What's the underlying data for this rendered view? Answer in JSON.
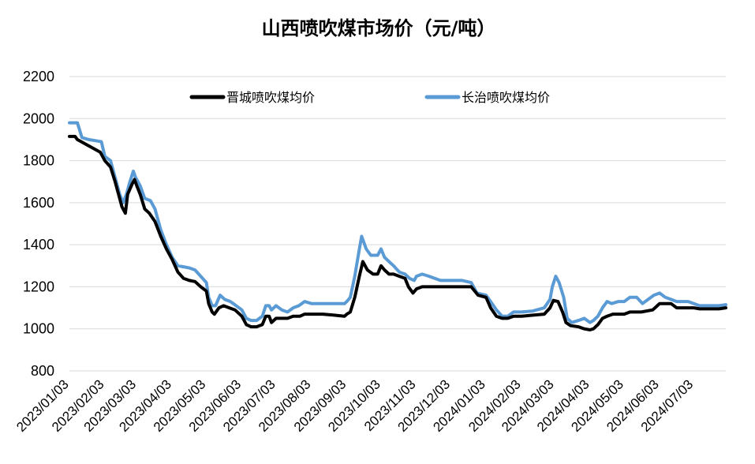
{
  "chart_data": {
    "type": "line",
    "title": "山西喷吹煤市场价（元/吨）",
    "xlabel": "",
    "ylabel": "",
    "ylim": [
      800,
      2200
    ],
    "yticks": [
      800,
      1000,
      1200,
      1400,
      1600,
      1800,
      2000,
      2200
    ],
    "xlim": [
      "2023-01-03",
      "2024-07-31"
    ],
    "xtick_labels": [
      "2023/01/03",
      "2023/02/03",
      "2023/03/03",
      "2023/04/03",
      "2023/05/03",
      "2023/06/03",
      "2023/07/03",
      "2023/08/03",
      "2023/09/03",
      "2023/10/03",
      "2023/11/03",
      "2023/12/03",
      "2024/01/03",
      "2024/02/03",
      "2024/03/03",
      "2024/04/03",
      "2024/05/03",
      "2024/06/03",
      "2024/07/03"
    ],
    "xtick_dates": [
      "2023-01-03",
      "2023-02-03",
      "2023-03-03",
      "2023-04-03",
      "2023-05-03",
      "2023-06-03",
      "2023-07-03",
      "2023-08-03",
      "2023-09-03",
      "2023-10-03",
      "2023-11-03",
      "2023-12-03",
      "2024-01-03",
      "2024-02-03",
      "2024-03-03",
      "2024-04-03",
      "2024-05-03",
      "2024-06-03",
      "2024-07-03"
    ],
    "grid": "horizontal",
    "legend_position": "top",
    "series": [
      {
        "name": "晋城喷吹煤均价",
        "color": "#000000",
        "points": [
          [
            "2023-01-03",
            1915
          ],
          [
            "2023-01-08",
            1915
          ],
          [
            "2023-01-10",
            1900
          ],
          [
            "2023-01-20",
            1870
          ],
          [
            "2023-01-30",
            1840
          ],
          [
            "2023-02-03",
            1800
          ],
          [
            "2023-02-08",
            1770
          ],
          [
            "2023-02-12",
            1700
          ],
          [
            "2023-02-16",
            1620
          ],
          [
            "2023-02-18",
            1580
          ],
          [
            "2023-02-21",
            1550
          ],
          [
            "2023-02-23",
            1640
          ],
          [
            "2023-02-27",
            1690
          ],
          [
            "2023-03-01",
            1710
          ],
          [
            "2023-03-03",
            1680
          ],
          [
            "2023-03-06",
            1640
          ],
          [
            "2023-03-10",
            1570
          ],
          [
            "2023-03-14",
            1550
          ],
          [
            "2023-03-19",
            1510
          ],
          [
            "2023-03-24",
            1440
          ],
          [
            "2023-03-29",
            1380
          ],
          [
            "2023-04-03",
            1330
          ],
          [
            "2023-04-08",
            1270
          ],
          [
            "2023-04-13",
            1240
          ],
          [
            "2023-04-18",
            1230
          ],
          [
            "2023-04-23",
            1225
          ],
          [
            "2023-04-28",
            1200
          ],
          [
            "2023-05-03",
            1180
          ],
          [
            "2023-05-05",
            1120
          ],
          [
            "2023-05-08",
            1080
          ],
          [
            "2023-05-10",
            1070
          ],
          [
            "2023-05-14",
            1100
          ],
          [
            "2023-05-18",
            1110
          ],
          [
            "2023-05-23",
            1100
          ],
          [
            "2023-05-28",
            1090
          ],
          [
            "2023-06-03",
            1060
          ],
          [
            "2023-06-07",
            1020
          ],
          [
            "2023-06-11",
            1010
          ],
          [
            "2023-06-16",
            1010
          ],
          [
            "2023-06-21",
            1020
          ],
          [
            "2023-06-24",
            1060
          ],
          [
            "2023-06-27",
            1060
          ],
          [
            "2023-06-29",
            1030
          ],
          [
            "2023-07-01",
            1040
          ],
          [
            "2023-07-03",
            1050
          ],
          [
            "2023-07-08",
            1050
          ],
          [
            "2023-07-13",
            1050
          ],
          [
            "2023-07-18",
            1060
          ],
          [
            "2023-07-24",
            1060
          ],
          [
            "2023-07-28",
            1070
          ],
          [
            "2023-08-03",
            1070
          ],
          [
            "2023-08-13",
            1070
          ],
          [
            "2023-08-23",
            1065
          ],
          [
            "2023-09-01",
            1060
          ],
          [
            "2023-09-03",
            1070
          ],
          [
            "2023-09-06",
            1080
          ],
          [
            "2023-09-10",
            1150
          ],
          [
            "2023-09-14",
            1250
          ],
          [
            "2023-09-17",
            1320
          ],
          [
            "2023-09-21",
            1280
          ],
          [
            "2023-09-26",
            1260
          ],
          [
            "2023-09-30",
            1260
          ],
          [
            "2023-10-03",
            1300
          ],
          [
            "2023-10-06",
            1280
          ],
          [
            "2023-10-10",
            1260
          ],
          [
            "2023-10-14",
            1260
          ],
          [
            "2023-10-19",
            1250
          ],
          [
            "2023-10-24",
            1240
          ],
          [
            "2023-10-27",
            1200
          ],
          [
            "2023-10-31",
            1170
          ],
          [
            "2023-11-03",
            1190
          ],
          [
            "2023-11-08",
            1200
          ],
          [
            "2023-11-14",
            1200
          ],
          [
            "2023-11-24",
            1200
          ],
          [
            "2023-12-03",
            1200
          ],
          [
            "2023-12-13",
            1200
          ],
          [
            "2023-12-21",
            1200
          ],
          [
            "2023-12-27",
            1160
          ],
          [
            "2024-01-03",
            1150
          ],
          [
            "2024-01-07",
            1100
          ],
          [
            "2024-01-12",
            1060
          ],
          [
            "2024-01-17",
            1050
          ],
          [
            "2024-01-22",
            1050
          ],
          [
            "2024-01-27",
            1060
          ],
          [
            "2024-02-03",
            1060
          ],
          [
            "2024-02-13",
            1065
          ],
          [
            "2024-02-23",
            1070
          ],
          [
            "2024-02-28",
            1100
          ],
          [
            "2024-03-02",
            1135
          ],
          [
            "2024-03-06",
            1130
          ],
          [
            "2024-03-10",
            1080
          ],
          [
            "2024-03-13",
            1030
          ],
          [
            "2024-03-17",
            1015
          ],
          [
            "2024-03-24",
            1010
          ],
          [
            "2024-03-29",
            1000
          ],
          [
            "2024-04-03",
            995
          ],
          [
            "2024-04-06",
            1000
          ],
          [
            "2024-04-10",
            1020
          ],
          [
            "2024-04-14",
            1050
          ],
          [
            "2024-04-18",
            1060
          ],
          [
            "2024-04-23",
            1070
          ],
          [
            "2024-04-28",
            1070
          ],
          [
            "2024-05-03",
            1070
          ],
          [
            "2024-05-08",
            1080
          ],
          [
            "2024-05-18",
            1080
          ],
          [
            "2024-05-28",
            1090
          ],
          [
            "2024-06-01",
            1110
          ],
          [
            "2024-06-03",
            1120
          ],
          [
            "2024-06-13",
            1120
          ],
          [
            "2024-06-18",
            1100
          ],
          [
            "2024-06-28",
            1100
          ],
          [
            "2024-07-03",
            1100
          ],
          [
            "2024-07-08",
            1095
          ],
          [
            "2024-07-18",
            1095
          ],
          [
            "2024-07-25",
            1095
          ],
          [
            "2024-07-31",
            1100
          ]
        ]
      },
      {
        "name": "长治喷吹煤均价",
        "color": "#5b9bd5",
        "points": [
          [
            "2023-01-03",
            1980
          ],
          [
            "2023-01-10",
            1980
          ],
          [
            "2023-01-14",
            1910
          ],
          [
            "2023-01-20",
            1900
          ],
          [
            "2023-01-26",
            1895
          ],
          [
            "2023-01-31",
            1890
          ],
          [
            "2023-02-03",
            1820
          ],
          [
            "2023-02-08",
            1800
          ],
          [
            "2023-02-12",
            1720
          ],
          [
            "2023-02-16",
            1640
          ],
          [
            "2023-02-19",
            1600
          ],
          [
            "2023-02-22",
            1640
          ],
          [
            "2023-02-25",
            1700
          ],
          [
            "2023-02-28",
            1750
          ],
          [
            "2023-03-02",
            1720
          ],
          [
            "2023-03-06",
            1680
          ],
          [
            "2023-03-10",
            1620
          ],
          [
            "2023-03-15",
            1610
          ],
          [
            "2023-03-19",
            1570
          ],
          [
            "2023-03-24",
            1470
          ],
          [
            "2023-03-29",
            1400
          ],
          [
            "2023-04-03",
            1340
          ],
          [
            "2023-04-08",
            1300
          ],
          [
            "2023-04-13",
            1295
          ],
          [
            "2023-04-18",
            1290
          ],
          [
            "2023-04-23",
            1280
          ],
          [
            "2023-04-28",
            1250
          ],
          [
            "2023-05-03",
            1220
          ],
          [
            "2023-05-05",
            1150
          ],
          [
            "2023-05-08",
            1110
          ],
          [
            "2023-05-11",
            1110
          ],
          [
            "2023-05-15",
            1160
          ],
          [
            "2023-05-19",
            1140
          ],
          [
            "2023-05-24",
            1130
          ],
          [
            "2023-05-29",
            1110
          ],
          [
            "2023-06-03",
            1090
          ],
          [
            "2023-06-07",
            1050
          ],
          [
            "2023-06-11",
            1040
          ],
          [
            "2023-06-16",
            1040
          ],
          [
            "2023-06-21",
            1060
          ],
          [
            "2023-06-24",
            1110
          ],
          [
            "2023-06-27",
            1110
          ],
          [
            "2023-06-29",
            1090
          ],
          [
            "2023-07-01",
            1100
          ],
          [
            "2023-07-03",
            1110
          ],
          [
            "2023-07-08",
            1090
          ],
          [
            "2023-07-13",
            1080
          ],
          [
            "2023-07-18",
            1100
          ],
          [
            "2023-07-23",
            1110
          ],
          [
            "2023-07-28",
            1130
          ],
          [
            "2023-08-03",
            1120
          ],
          [
            "2023-08-13",
            1120
          ],
          [
            "2023-08-23",
            1120
          ],
          [
            "2023-09-01",
            1120
          ],
          [
            "2023-09-03",
            1130
          ],
          [
            "2023-09-06",
            1150
          ],
          [
            "2023-09-10",
            1250
          ],
          [
            "2023-09-14",
            1380
          ],
          [
            "2023-09-16",
            1440
          ],
          [
            "2023-09-20",
            1380
          ],
          [
            "2023-09-24",
            1350
          ],
          [
            "2023-09-30",
            1350
          ],
          [
            "2023-10-03",
            1380
          ],
          [
            "2023-10-06",
            1340
          ],
          [
            "2023-10-10",
            1320
          ],
          [
            "2023-10-14",
            1300
          ],
          [
            "2023-10-19",
            1270
          ],
          [
            "2023-10-24",
            1260
          ],
          [
            "2023-10-28",
            1240
          ],
          [
            "2023-11-01",
            1230
          ],
          [
            "2023-11-03",
            1250
          ],
          [
            "2023-11-08",
            1260
          ],
          [
            "2023-11-14",
            1250
          ],
          [
            "2023-11-24",
            1230
          ],
          [
            "2023-12-03",
            1230
          ],
          [
            "2023-12-13",
            1230
          ],
          [
            "2023-12-21",
            1220
          ],
          [
            "2023-12-26",
            1170
          ],
          [
            "2024-01-03",
            1160
          ],
          [
            "2024-01-07",
            1130
          ],
          [
            "2024-01-12",
            1090
          ],
          [
            "2024-01-17",
            1060
          ],
          [
            "2024-01-22",
            1060
          ],
          [
            "2024-01-27",
            1080
          ],
          [
            "2024-02-03",
            1080
          ],
          [
            "2024-02-13",
            1085
          ],
          [
            "2024-02-23",
            1100
          ],
          [
            "2024-02-28",
            1140
          ],
          [
            "2024-03-01",
            1200
          ],
          [
            "2024-03-04",
            1250
          ],
          [
            "2024-03-07",
            1220
          ],
          [
            "2024-03-11",
            1150
          ],
          [
            "2024-03-14",
            1050
          ],
          [
            "2024-03-18",
            1030
          ],
          [
            "2024-03-24",
            1040
          ],
          [
            "2024-03-29",
            1050
          ],
          [
            "2024-04-03",
            1030
          ],
          [
            "2024-04-06",
            1040
          ],
          [
            "2024-04-10",
            1060
          ],
          [
            "2024-04-14",
            1100
          ],
          [
            "2024-04-18",
            1130
          ],
          [
            "2024-04-22",
            1120
          ],
          [
            "2024-04-28",
            1130
          ],
          [
            "2024-05-03",
            1130
          ],
          [
            "2024-05-08",
            1150
          ],
          [
            "2024-05-14",
            1150
          ],
          [
            "2024-05-19",
            1120
          ],
          [
            "2024-05-24",
            1140
          ],
          [
            "2024-05-29",
            1160
          ],
          [
            "2024-06-03",
            1170
          ],
          [
            "2024-06-08",
            1150
          ],
          [
            "2024-06-13",
            1140
          ],
          [
            "2024-06-18",
            1130
          ],
          [
            "2024-06-28",
            1130
          ],
          [
            "2024-07-03",
            1120
          ],
          [
            "2024-07-08",
            1110
          ],
          [
            "2024-07-18",
            1110
          ],
          [
            "2024-07-25",
            1110
          ],
          [
            "2024-07-31",
            1115
          ]
        ]
      }
    ]
  }
}
